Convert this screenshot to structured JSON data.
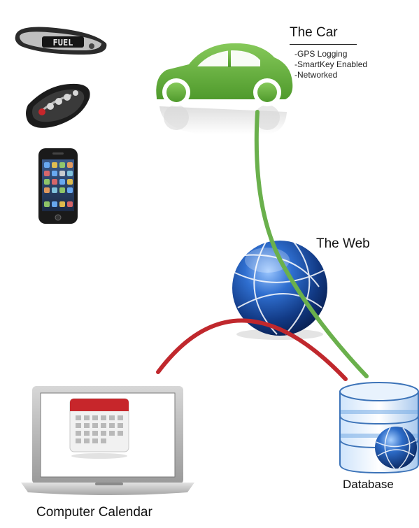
{
  "car": {
    "title": "The Car",
    "features": [
      "-GPS Logging",
      "-SmartKey Enabled",
      "-Networked"
    ]
  },
  "web": {
    "label": "The Web"
  },
  "database": {
    "label": "Database"
  },
  "calendar": {
    "label": "Computer Calendar"
  },
  "devices": {
    "band_text": "FUEL"
  },
  "colors": {
    "car_green": "#6cb33e",
    "link_green": "#6ab04c",
    "link_red": "#c0282d",
    "globe_blue": "#1d4fa0",
    "db_blue": "#2b6fc0",
    "calendar_red": "#c7262b"
  },
  "icons": [
    "fuel-band-icon",
    "smart-key-icon",
    "smartphone-icon",
    "car-icon",
    "globe-icon",
    "database-icon",
    "laptop-icon",
    "calendar-icon"
  ]
}
